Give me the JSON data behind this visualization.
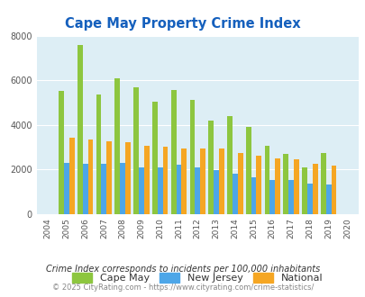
{
  "title": "Cape May Property Crime Index",
  "years": [
    2004,
    2005,
    2006,
    2007,
    2008,
    2009,
    2010,
    2011,
    2012,
    2013,
    2014,
    2015,
    2016,
    2017,
    2018,
    2019,
    2020
  ],
  "cape_may": [
    0,
    5500,
    7600,
    5350,
    6100,
    5700,
    5050,
    5550,
    5100,
    4200,
    4400,
    3900,
    3050,
    2700,
    2100,
    2750,
    0
  ],
  "new_jersey": [
    0,
    2300,
    2250,
    2250,
    2300,
    2100,
    2100,
    2200,
    2100,
    1950,
    1800,
    1650,
    1500,
    1500,
    1350,
    1300,
    0
  ],
  "national": [
    0,
    3400,
    3350,
    3250,
    3200,
    3050,
    3000,
    2950,
    2950,
    2950,
    2750,
    2600,
    2500,
    2450,
    2250,
    2150,
    0
  ],
  "cape_may_color": "#8dc63f",
  "new_jersey_color": "#4da6e8",
  "national_color": "#f5a623",
  "bg_color": "#ddeef5",
  "ylim": [
    0,
    8000
  ],
  "yticks": [
    0,
    2000,
    4000,
    6000,
    8000
  ],
  "footnote1": "Crime Index corresponds to incidents per 100,000 inhabitants",
  "footnote2": "© 2025 CityRating.com - https://www.cityrating.com/crime-statistics/",
  "title_color": "#1560bd",
  "footnote1_color": "#333333",
  "footnote2_color": "#888888",
  "legend_labels": [
    "Cape May",
    "New Jersey",
    "National"
  ]
}
